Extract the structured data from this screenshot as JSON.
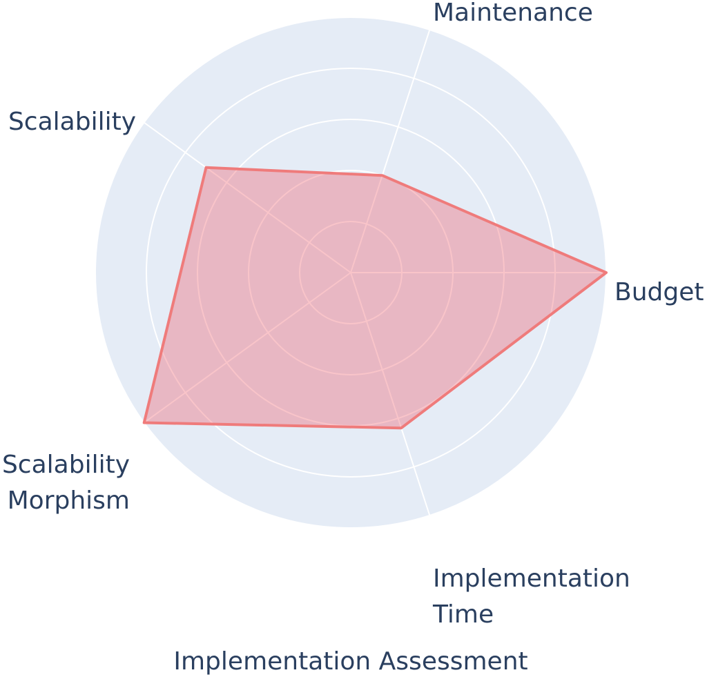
{
  "chart_data": {
    "type": "radar",
    "title": "Implementation Assessment",
    "axes": [
      {
        "label_lines": [
          "Budget"
        ],
        "value": 5
      },
      {
        "label_lines": [
          "Maintenance"
        ],
        "value": 2
      },
      {
        "label_lines": [
          "Scalability"
        ],
        "value": 3.5
      },
      {
        "label_lines": [
          "Scalability",
          "Morphism"
        ],
        "value": 5
      },
      {
        "label_lines": [
          "Implementation",
          "Time"
        ],
        "value": 3.2
      }
    ],
    "radial_range": [
      0,
      5
    ],
    "radial_ticks": [
      1,
      2,
      3,
      4,
      5
    ],
    "grid": true,
    "colors": {
      "background": "#e5ecf6",
      "grid": "#ffffff",
      "fill": "rgba(239, 85, 99, 0.35)",
      "line": "#ef7b7b",
      "text": "#2a3f5f"
    }
  }
}
